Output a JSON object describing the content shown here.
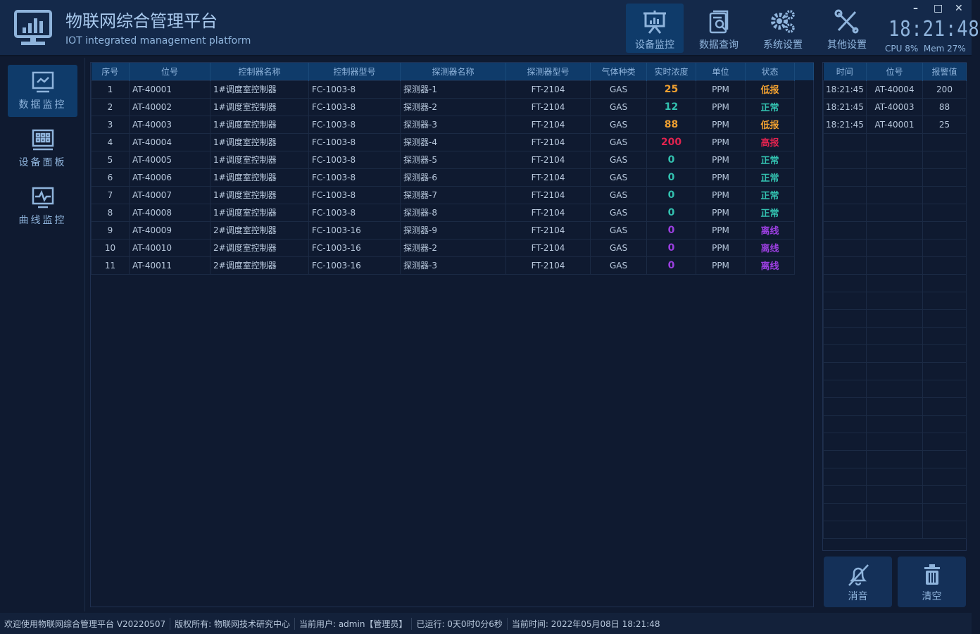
{
  "header": {
    "title": "物联网综合管理平台",
    "subtitle": "IOT integrated management platform",
    "nav": [
      {
        "label": "设备监控",
        "icon": "presentation-board-icon"
      },
      {
        "label": "数据查询",
        "icon": "document-search-icon"
      },
      {
        "label": "系统设置",
        "icon": "gears-icon"
      },
      {
        "label": "其他设置",
        "icon": "tools-icon"
      }
    ],
    "clock": "18:21:48",
    "cpu": "CPU 8%",
    "mem": "Mem 27%",
    "window": {
      "minimize": "–",
      "maximize": "□",
      "close": "✕"
    }
  },
  "sidebar": {
    "items": [
      {
        "label": "数据监控",
        "icon": "monitor-chart-icon"
      },
      {
        "label": "设备面板",
        "icon": "panel-grid-icon"
      },
      {
        "label": "曲线监控",
        "icon": "monitor-pulse-icon"
      }
    ]
  },
  "colors": {
    "低报": "#f0a030",
    "正常": "#33c2b0",
    "高报": "#e0234f",
    "离线": "#9b3fe0"
  },
  "main_table": {
    "headers": [
      "序号",
      "位号",
      "控制器名称",
      "控制器型号",
      "探测器名称",
      "探测器型号",
      "气体种类",
      "实时浓度",
      "单位",
      "状态"
    ],
    "rows": [
      [
        "1",
        "AT-40001",
        "1#调度室控制器",
        "FC-1003-8",
        "探测器-1",
        "FT-2104",
        "GAS",
        "25",
        "PPM",
        "低报"
      ],
      [
        "2",
        "AT-40002",
        "1#调度室控制器",
        "FC-1003-8",
        "探测器-2",
        "FT-2104",
        "GAS",
        "12",
        "PPM",
        "正常"
      ],
      [
        "3",
        "AT-40003",
        "1#调度室控制器",
        "FC-1003-8",
        "探测器-3",
        "FT-2104",
        "GAS",
        "88",
        "PPM",
        "低报"
      ],
      [
        "4",
        "AT-40004",
        "1#调度室控制器",
        "FC-1003-8",
        "探测器-4",
        "FT-2104",
        "GAS",
        "200",
        "PPM",
        "高报"
      ],
      [
        "5",
        "AT-40005",
        "1#调度室控制器",
        "FC-1003-8",
        "探测器-5",
        "FT-2104",
        "GAS",
        "0",
        "PPM",
        "正常"
      ],
      [
        "6",
        "AT-40006",
        "1#调度室控制器",
        "FC-1003-8",
        "探测器-6",
        "FT-2104",
        "GAS",
        "0",
        "PPM",
        "正常"
      ],
      [
        "7",
        "AT-40007",
        "1#调度室控制器",
        "FC-1003-8",
        "探测器-7",
        "FT-2104",
        "GAS",
        "0",
        "PPM",
        "正常"
      ],
      [
        "8",
        "AT-40008",
        "1#调度室控制器",
        "FC-1003-8",
        "探测器-8",
        "FT-2104",
        "GAS",
        "0",
        "PPM",
        "正常"
      ],
      [
        "9",
        "AT-40009",
        "2#调度室控制器",
        "FC-1003-16",
        "探测器-9",
        "FT-2104",
        "GAS",
        "0",
        "PPM",
        "离线"
      ],
      [
        "10",
        "AT-40010",
        "2#调度室控制器",
        "FC-1003-16",
        "探测器-2",
        "FT-2104",
        "GAS",
        "0",
        "PPM",
        "离线"
      ],
      [
        "11",
        "AT-40011",
        "2#调度室控制器",
        "FC-1003-16",
        "探测器-3",
        "FT-2104",
        "GAS",
        "0",
        "PPM",
        "离线"
      ]
    ]
  },
  "alarm_table": {
    "headers": [
      "时间",
      "位号",
      "报警值"
    ],
    "rows": [
      [
        "18:21:45",
        "AT-40004",
        "200"
      ],
      [
        "18:21:45",
        "AT-40003",
        "88"
      ],
      [
        "18:21:45",
        "AT-40001",
        "25"
      ]
    ]
  },
  "actions": {
    "mute": "消音",
    "clear": "清空"
  },
  "statusbar": [
    "欢迎使用物联网综合管理平台 V20220507",
    "版权所有: 物联网技术研究中心",
    "当前用户: admin【管理员】",
    "已运行: 0天0时0分6秒",
    "当前时间: 2022年05月08日 18:21:48"
  ]
}
